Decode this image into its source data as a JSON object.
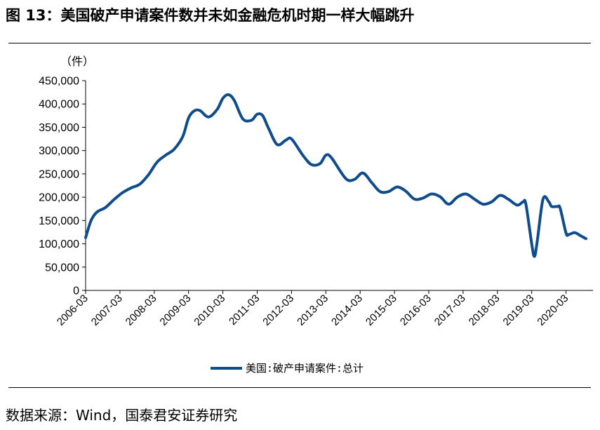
{
  "header": {
    "title": "图 13：美国破产申请案件数并未如金融危机时期一样大幅跳升"
  },
  "footer": {
    "source": "数据来源：Wind，国泰君安证券研究"
  },
  "chart_data": {
    "type": "line",
    "unit_label": "（件）",
    "y_ticks": [
      "450,000",
      "400,000",
      "350,000",
      "300,000",
      "250,000",
      "200,000",
      "150,000",
      "100,000",
      "50,000",
      "0"
    ],
    "ylim": [
      0,
      450000
    ],
    "x_ticks": [
      "2006-03",
      "2007-03",
      "2008-03",
      "2009-03",
      "2010-03",
      "2011-03",
      "2012-03",
      "2013-03",
      "2014-03",
      "2015-03",
      "2016-03",
      "2017-03",
      "2018-03",
      "2019-03",
      "2020-03"
    ],
    "xlim": [
      2006.17,
      2020.92
    ],
    "legend": {
      "position": "bottom-center"
    },
    "color": "#0f4c8c",
    "series": [
      {
        "name": "美国:破产申请案件:总计",
        "points": [
          [
            2006.17,
            113000
          ],
          [
            2006.33,
            150000
          ],
          [
            2006.5,
            168000
          ],
          [
            2006.75,
            178000
          ],
          [
            2007.0,
            195000
          ],
          [
            2007.25,
            210000
          ],
          [
            2007.5,
            220000
          ],
          [
            2007.75,
            228000
          ],
          [
            2008.0,
            248000
          ],
          [
            2008.25,
            275000
          ],
          [
            2008.5,
            290000
          ],
          [
            2008.75,
            303000
          ],
          [
            2009.0,
            330000
          ],
          [
            2009.17,
            370000
          ],
          [
            2009.33,
            385000
          ],
          [
            2009.5,
            386000
          ],
          [
            2009.75,
            372000
          ],
          [
            2010.0,
            388000
          ],
          [
            2010.17,
            412000
          ],
          [
            2010.33,
            420000
          ],
          [
            2010.5,
            408000
          ],
          [
            2010.75,
            368000
          ],
          [
            2011.0,
            365000
          ],
          [
            2011.17,
            378000
          ],
          [
            2011.33,
            375000
          ],
          [
            2011.5,
            348000
          ],
          [
            2011.75,
            313000
          ],
          [
            2012.0,
            322000
          ],
          [
            2012.17,
            325000
          ],
          [
            2012.5,
            290000
          ],
          [
            2012.75,
            270000
          ],
          [
            2013.0,
            272000
          ],
          [
            2013.17,
            290000
          ],
          [
            2013.33,
            285000
          ],
          [
            2013.75,
            240000
          ],
          [
            2014.0,
            238000
          ],
          [
            2014.25,
            252000
          ],
          [
            2014.5,
            232000
          ],
          [
            2014.75,
            212000
          ],
          [
            2015.0,
            212000
          ],
          [
            2015.25,
            222000
          ],
          [
            2015.5,
            213000
          ],
          [
            2015.75,
            196000
          ],
          [
            2016.0,
            198000
          ],
          [
            2016.25,
            207000
          ],
          [
            2016.5,
            201000
          ],
          [
            2016.75,
            185000
          ],
          [
            2017.0,
            200000
          ],
          [
            2017.25,
            207000
          ],
          [
            2017.5,
            196000
          ],
          [
            2017.75,
            185000
          ],
          [
            2018.0,
            190000
          ],
          [
            2018.25,
            204000
          ],
          [
            2018.5,
            195000
          ],
          [
            2018.75,
            183000
          ],
          [
            2018.92,
            190000
          ],
          [
            2019.0,
            185000
          ],
          [
            2019.17,
            100000
          ],
          [
            2019.25,
            73000
          ],
          [
            2019.33,
            105000
          ],
          [
            2019.5,
            196000
          ],
          [
            2019.67,
            190000
          ],
          [
            2019.75,
            180000
          ],
          [
            2019.92,
            180000
          ],
          [
            2020.0,
            176000
          ],
          [
            2020.17,
            123000
          ],
          [
            2020.25,
            120000
          ],
          [
            2020.42,
            124000
          ],
          [
            2020.58,
            118000
          ],
          [
            2020.75,
            111000
          ]
        ]
      }
    ]
  }
}
